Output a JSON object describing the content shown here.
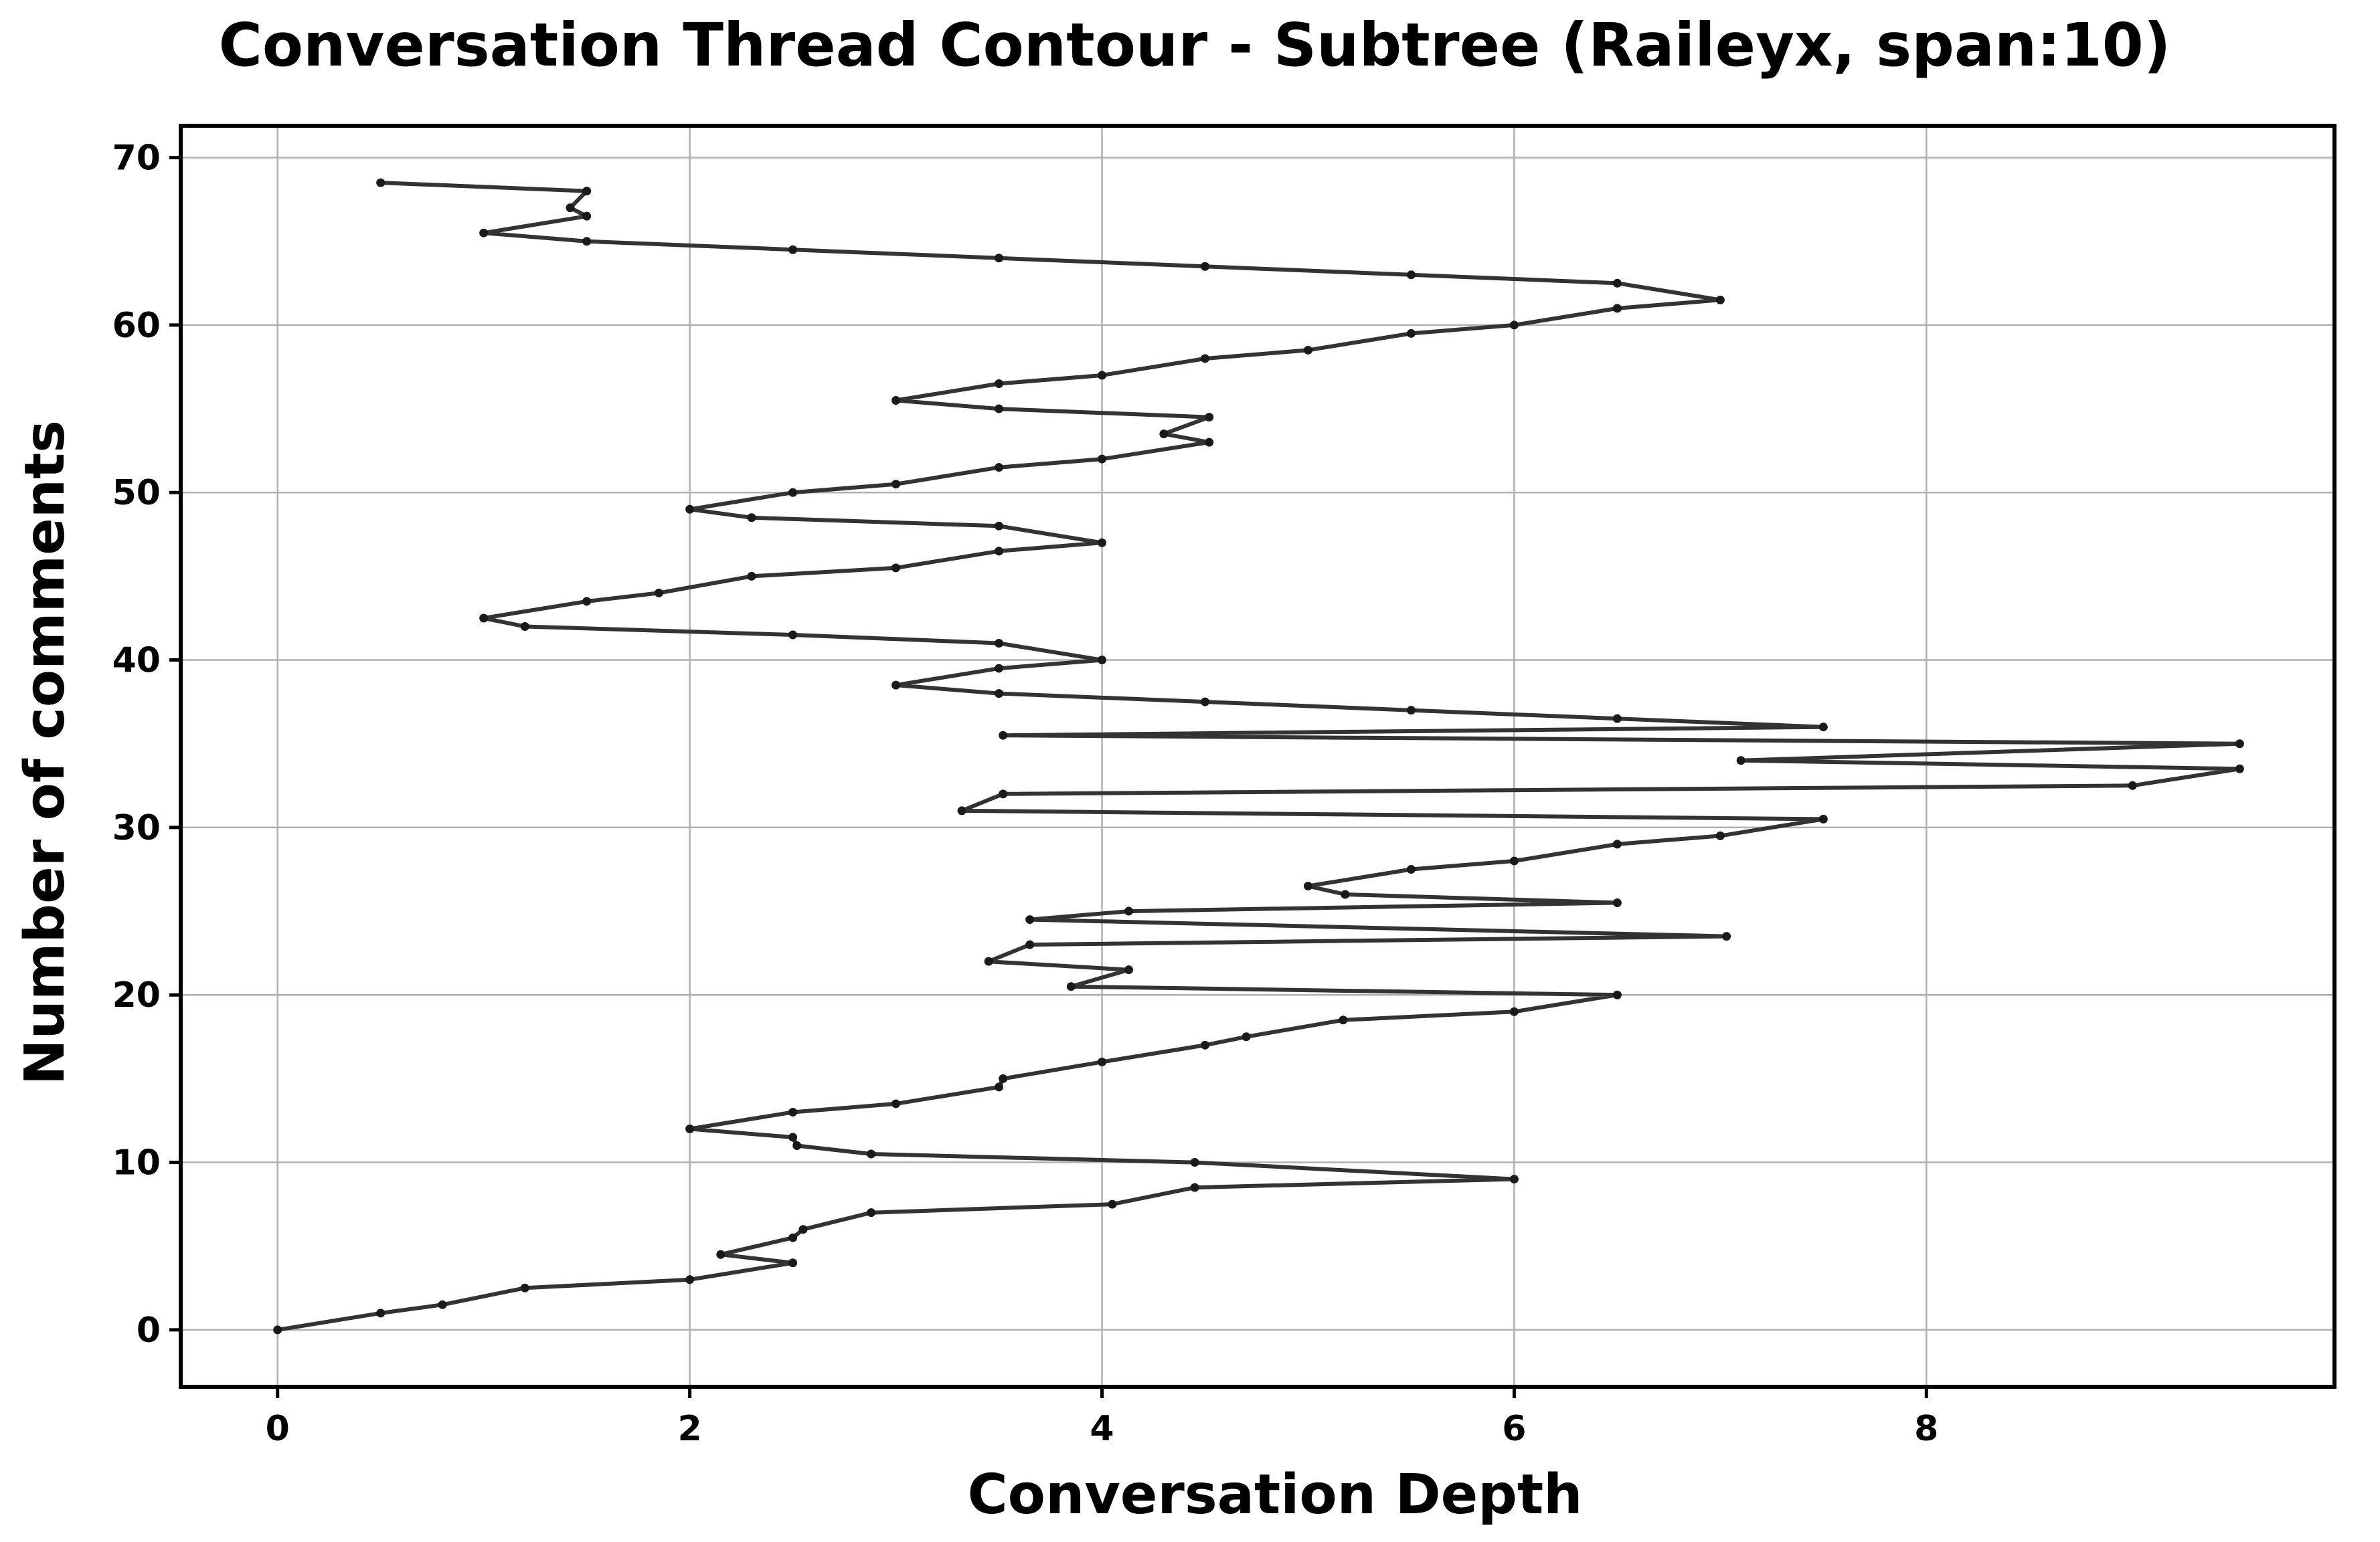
{
  "chart_data": {
    "type": "line",
    "title": "Conversation Thread Contour  - Subtree (Raileyx, span:10)",
    "xlabel": "Conversation Depth",
    "ylabel": "Number of comments",
    "xlim": [
      -0.47,
      9.98
    ],
    "ylim": [
      -3.4,
      71.9
    ],
    "xticks": [
      0,
      2,
      4,
      6,
      8
    ],
    "yticks": [
      0,
      10,
      20,
      30,
      40,
      50,
      60,
      70
    ],
    "grid": true,
    "line_color": "#333333",
    "series": [
      {
        "x": [
          0,
          0.5,
          0.8,
          1.2,
          2.0,
          2.5,
          2.15,
          2.5,
          2.55,
          2.88,
          4.05,
          4.45,
          6.0,
          4.45,
          2.88,
          2.52,
          2.5,
          2.0,
          2.5,
          3.0,
          3.5,
          3.52,
          4.0,
          4.5,
          4.7,
          5.17,
          6.0,
          6.5,
          3.85,
          4.13,
          3.45,
          3.65,
          7.03,
          3.65,
          4.13,
          6.5,
          5.18,
          5.0,
          5.5,
          6.0,
          6.5,
          7.0,
          7.5,
          3.32,
          3.52,
          9.0,
          9.52,
          7.1,
          9.52,
          3.52,
          7.5,
          6.5,
          5.5,
          4.5,
          3.5,
          3.0,
          3.5,
          4.0,
          3.5,
          2.5,
          1.2,
          1.0,
          1.5,
          1.85,
          2.3,
          3.0,
          3.5,
          4.0,
          3.5,
          2.3,
          2.0,
          2.5,
          3.0,
          3.5,
          4.0,
          4.52,
          4.3,
          4.52,
          3.5,
          3.0,
          3.5,
          4.0,
          4.5,
          5.0,
          5.5,
          6.0,
          6.5,
          7.0,
          6.5,
          5.5,
          4.5,
          3.5,
          2.5,
          1.5,
          1.0,
          1.5,
          1.42,
          1.5,
          0.5
        ],
        "y": [
          0,
          1,
          1.5,
          2.5,
          3,
          4,
          4.5,
          5.5,
          6,
          7,
          7.5,
          8.5,
          9,
          10,
          10.5,
          11,
          11.5,
          12,
          13,
          13.5,
          14.5,
          15,
          16,
          17,
          17.5,
          18.5,
          19,
          20,
          20.5,
          21.5,
          22,
          23,
          23.5,
          24.5,
          25,
          25.5,
          26,
          26.5,
          27.5,
          28,
          29,
          29.5,
          30.5,
          31,
          32,
          32.5,
          33.5,
          34,
          35,
          35.5,
          36,
          36.5,
          37,
          37.5,
          38,
          38.5,
          39.5,
          40,
          41,
          41.5,
          42,
          42.5,
          43.5,
          44,
          45,
          45.5,
          46.5,
          47,
          48,
          48.5,
          49,
          50,
          50.5,
          51.5,
          52,
          53,
          53.5,
          54.5,
          55,
          55.5,
          56.5,
          57,
          58,
          58.5,
          59.5,
          60,
          61,
          61.5,
          62.5,
          63,
          63.5,
          64,
          64.5,
          65,
          65.5,
          66.5,
          67,
          68,
          68.5
        ]
      }
    ]
  }
}
